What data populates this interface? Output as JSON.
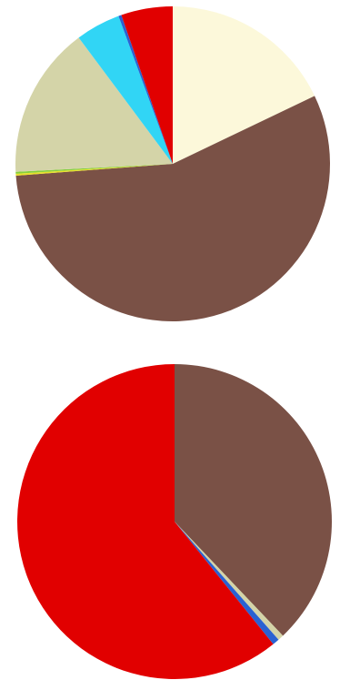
{
  "chart_data": [
    {
      "type": "pie",
      "values": [
        17.9,
        55.9,
        0.2,
        0.2,
        15.6,
        4.6,
        0.3,
        5.3
      ],
      "colors": [
        "#fcf8da",
        "#7a5146",
        "#e8e02a",
        "#86cf3c",
        "#d4d4a8",
        "#31d5f5",
        "#2a62d2",
        "#e10000"
      ]
    },
    {
      "type": "pie",
      "values": [
        37.9,
        0.6,
        0.7,
        60.8
      ],
      "colors": [
        "#7a5146",
        "#d4d4a8",
        "#2a62d2",
        "#e10000"
      ]
    }
  ]
}
